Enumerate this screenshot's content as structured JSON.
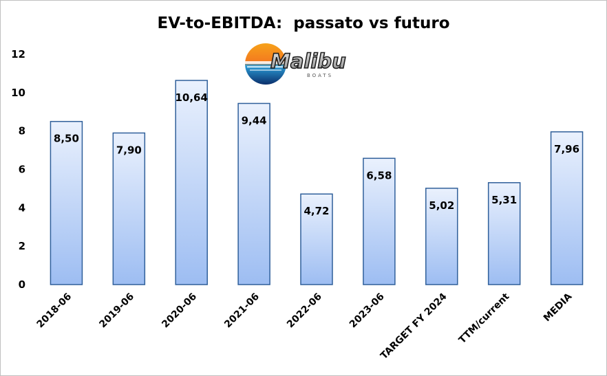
{
  "chart_data": {
    "type": "bar",
    "title": "EV-to-EBITDA:  passato vs futuro",
    "categories": [
      "2018-06",
      "2019-06",
      "2020-06",
      "2021-06",
      "2022-06",
      "2023-06",
      "TARGET FY 2024",
      "TTM/current",
      "MEDIA"
    ],
    "values": [
      8.5,
      7.9,
      10.64,
      9.44,
      4.72,
      6.58,
      5.02,
      5.31,
      7.96
    ],
    "data_labels": [
      "8,50",
      "7,90",
      "10,64",
      "9,44",
      "4,72",
      "6,58",
      "5,02",
      "5,31",
      "7,96"
    ],
    "y_ticks": [
      0,
      2,
      4,
      6,
      8,
      10,
      12
    ],
    "ylim": [
      0,
      12
    ],
    "grid": false,
    "legend": "none",
    "colors": {
      "bar_top": "#eaf1fd",
      "bar_bottom": "#9dbdf2",
      "bar_border": "#2f5f9a"
    }
  },
  "logo": {
    "name": "malibu-boats-logo",
    "text": "Malibu",
    "subtext": "BOATS"
  }
}
